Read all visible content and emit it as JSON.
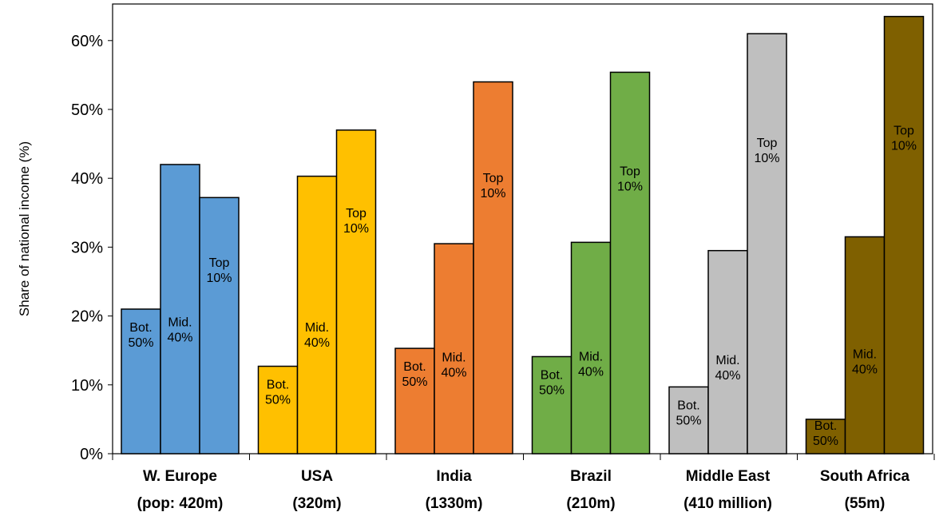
{
  "chart_data": {
    "type": "bar",
    "ylabel": "Share of national income (%)",
    "ylim": [
      0,
      66
    ],
    "yticks": [
      0,
      10,
      20,
      30,
      40,
      50,
      60
    ],
    "ytick_labels": [
      "0%",
      "10%",
      "20%",
      "30%",
      "40%",
      "50%",
      "60%"
    ],
    "grid": false,
    "categories": [
      {
        "line1": "W. Europe",
        "line2": "(pop: 420m)"
      },
      {
        "line1": "USA",
        "line2": "(320m)"
      },
      {
        "line1": "India",
        "line2": "(1330m)"
      },
      {
        "line1": "Brazil",
        "line2": "(210m)"
      },
      {
        "line1": "Middle East",
        "line2": "(410 million)"
      },
      {
        "line1": "South Africa",
        "line2": "(55m)"
      }
    ],
    "series": [
      {
        "name": "Bot. 50%",
        "label_line1": "Bot.",
        "label_line2": "50%",
        "values": [
          21.0,
          12.7,
          15.3,
          14.1,
          9.7,
          5.0
        ]
      },
      {
        "name": "Mid. 40%",
        "label_line1": "Mid.",
        "label_line2": "40%",
        "values": [
          42.0,
          40.3,
          30.5,
          30.7,
          29.5,
          31.5
        ]
      },
      {
        "name": "Top 10%",
        "label_line1": "Top",
        "label_line2": "10%",
        "values": [
          37.2,
          47.0,
          54.0,
          55.4,
          61.0,
          63.5
        ]
      }
    ],
    "colors": [
      "#5B9BD5",
      "#FFC000",
      "#ED7D31",
      "#70AD47",
      "#BFBFBF",
      "#7F6000"
    ]
  }
}
